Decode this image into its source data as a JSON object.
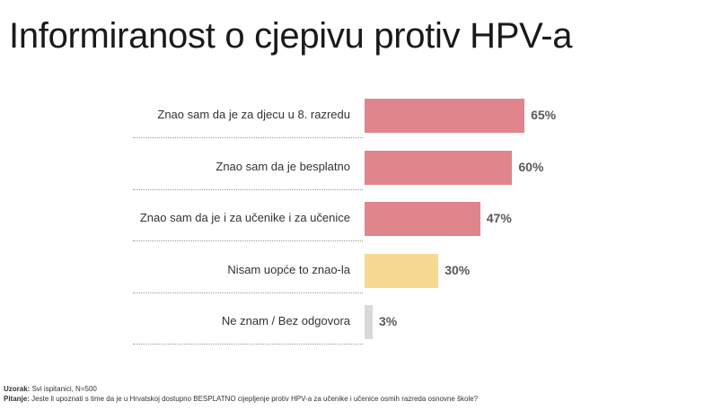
{
  "title": "Informiranost o cjepivu protiv HPV-a",
  "chart_data": {
    "type": "bar",
    "orientation": "horizontal",
    "categories": [
      "Znao sam da je za djecu u 8. razredu",
      "Znao sam da je besplatno",
      "Znao sam da je i za učenike i za učenice",
      "Nisam uopće to znao-la",
      "Ne znam / Bez odgovora"
    ],
    "values": [
      65,
      60,
      47,
      30,
      3
    ],
    "value_labels": [
      "65%",
      "60%",
      "47%",
      "30%",
      "3%"
    ],
    "bar_colors": [
      "#e0858b",
      "#e0858b",
      "#e0858b",
      "#f7d992",
      "#d9d9d9"
    ],
    "unit": "%",
    "xlim": [
      0,
      100
    ],
    "grid": false,
    "legend": "none"
  },
  "footnote": {
    "sample_label": "Uzorak:",
    "sample_text": "Svi ispitanici, N=500",
    "question_label": "Pitanje:",
    "question_text": "Jeste li upoznati s time da je u Hrvatskoj dostupno BESPLATNO cijepljenje protiv HPV-a za učenike i učenice osmih razreda osnovne škole?"
  }
}
